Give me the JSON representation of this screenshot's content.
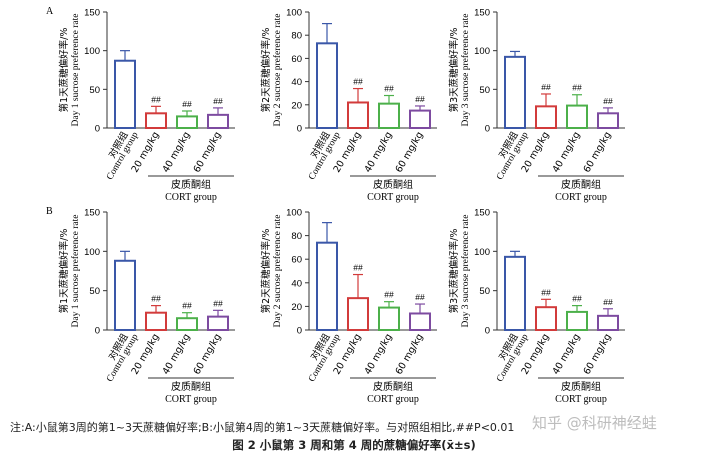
{
  "chart_data": [
    {
      "panel_label": "A",
      "type": "bar",
      "ylabel": "第1天蔗糖偏好率/%",
      "ylabel_en": "Day 1 sucrose preference rate",
      "ylim": [
        0,
        150
      ],
      "yticks": [
        "0",
        "50",
        "100",
        "150"
      ],
      "categories": [
        "对照组",
        "20 mg/kg",
        "40 mg/kg",
        "60 mg/kg"
      ],
      "category_en": [
        "Control group",
        "",
        "",
        ""
      ],
      "group_label": "皮质酮组",
      "group_label_en": "CORT group",
      "values": [
        87,
        19,
        15,
        17
      ],
      "errors": [
        13,
        9,
        7,
        9
      ],
      "annotations": [
        "",
        "##",
        "##",
        "##"
      ]
    },
    {
      "panel_label": "",
      "type": "bar",
      "ylabel": "第2天蔗糖偏好率/%",
      "ylabel_en": "Day 2 sucrose preference rate",
      "ylim": [
        0,
        100
      ],
      "yticks": [
        "0",
        "20",
        "40",
        "60",
        "80",
        "100"
      ],
      "categories": [
        "对照组",
        "20 mg/kg",
        "40 mg/kg",
        "60 mg/kg"
      ],
      "category_en": [
        "Control group",
        "",
        "",
        ""
      ],
      "group_label": "皮质酮组",
      "group_label_en": "CORT group",
      "values": [
        73,
        22,
        21,
        15
      ],
      "errors": [
        17,
        12,
        7,
        4
      ],
      "annotations": [
        "",
        "##",
        "##",
        "##"
      ]
    },
    {
      "panel_label": "",
      "type": "bar",
      "ylabel": "第3天蔗糖偏好率/%",
      "ylabel_en": "Day 3 sucrose preference rate",
      "ylim": [
        0,
        150
      ],
      "yticks": [
        "0",
        "50",
        "100",
        "150"
      ],
      "categories": [
        "对照组",
        "20 mg/kg",
        "40 mg/kg",
        "60 mg/kg"
      ],
      "category_en": [
        "Control group",
        "",
        "",
        ""
      ],
      "group_label": "皮质酮组",
      "group_label_en": "CORT group",
      "values": [
        92,
        28,
        29,
        19
      ],
      "errors": [
        7,
        16,
        14,
        7
      ],
      "annotations": [
        "",
        "##",
        "##",
        "##"
      ]
    },
    {
      "panel_label": "B",
      "type": "bar",
      "ylabel": "第1天蔗糖偏好率/%",
      "ylabel_en": "Day 1 sucrose preference rate",
      "ylim": [
        0,
        150
      ],
      "yticks": [
        "0",
        "50",
        "100",
        "150"
      ],
      "categories": [
        "对照组",
        "20 mg/kg",
        "40 mg/kg",
        "60 mg/kg"
      ],
      "category_en": [
        "Control group",
        "",
        "",
        ""
      ],
      "group_label": "皮质酮组",
      "group_label_en": "CORT group",
      "values": [
        88,
        22,
        15,
        17
      ],
      "errors": [
        12,
        9,
        7,
        8
      ],
      "annotations": [
        "",
        "##",
        "##",
        "##"
      ]
    },
    {
      "panel_label": "",
      "type": "bar",
      "ylabel": "第2天蔗糖偏好率/%",
      "ylabel_en": "Day 2 sucrose preference rate",
      "ylim": [
        0,
        100
      ],
      "yticks": [
        "0",
        "20",
        "40",
        "60",
        "80",
        "100"
      ],
      "categories": [
        "对照组",
        "20 mg/kg",
        "40 mg/kg",
        "60 mg/kg"
      ],
      "category_en": [
        "Control group",
        "",
        "",
        ""
      ],
      "group_label": "皮质酮组",
      "group_label_en": "CORT group",
      "values": [
        74,
        27,
        19,
        14
      ],
      "errors": [
        17,
        20,
        5,
        8
      ],
      "annotations": [
        "",
        "##",
        "##",
        "##"
      ]
    },
    {
      "panel_label": "",
      "type": "bar",
      "ylabel": "第3天蔗糖偏好率/%",
      "ylabel_en": "Day 3 sucrose preference rate",
      "ylim": [
        0,
        150
      ],
      "yticks": [
        "0",
        "50",
        "100",
        "150"
      ],
      "categories": [
        "对照组",
        "20 mg/kg",
        "40 mg/kg",
        "60 mg/kg"
      ],
      "category_en": [
        "Control group",
        "",
        "",
        ""
      ],
      "group_label": "皮质酮组",
      "group_label_en": "CORT group",
      "values": [
        93,
        29,
        23,
        18
      ],
      "errors": [
        7,
        10,
        8,
        9
      ],
      "annotations": [
        "",
        "##",
        "##",
        "##"
      ]
    }
  ],
  "colors": {
    "control": "#3a57a8",
    "dose20": "#d23b3b",
    "dose40": "#4cb04a",
    "dose60": "#7d4ba0",
    "axis": "#333333"
  },
  "note": "注:A:小鼠第3周的第1~3天蔗糖偏好率;B:小鼠第4周的第1~3天蔗糖偏好率。与对照组相比,##P<0.01",
  "caption": "图 2    小鼠第 3 周和第 4 周的蔗糖偏好率(x̄±s)",
  "watermark": "知乎 @科研神经蛙"
}
